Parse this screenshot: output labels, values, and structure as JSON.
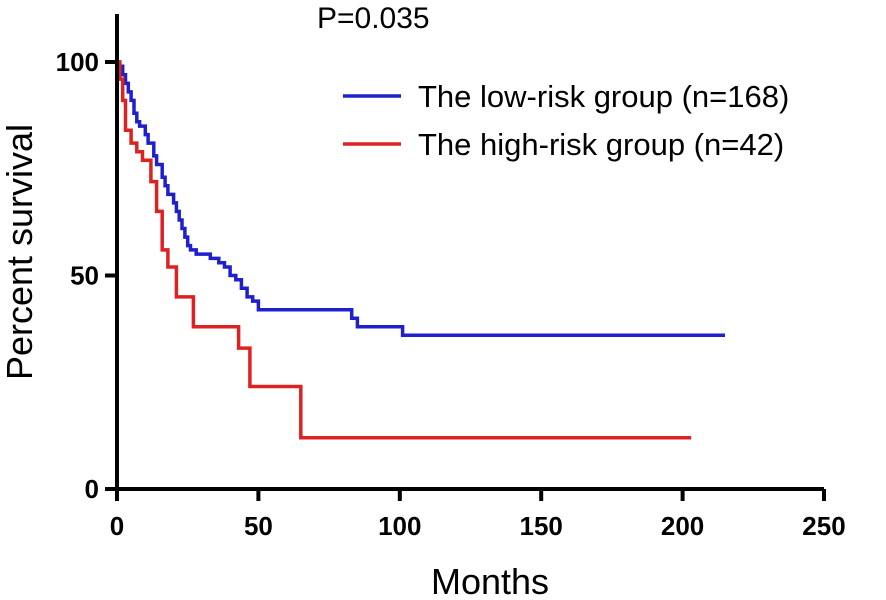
{
  "chart_data": {
    "type": "line",
    "title": "",
    "annotation": "P=0.035",
    "xlabel": "Months",
    "ylabel": "Percent survival",
    "xlim": [
      0,
      250
    ],
    "ylim": [
      0,
      100
    ],
    "xticks": [
      0,
      50,
      100,
      150,
      200,
      250
    ],
    "yticks": [
      0,
      50,
      100
    ],
    "xtick_labels": [
      "0",
      "50",
      "100",
      "150",
      "200",
      "250"
    ],
    "ytick_labels": [
      "0",
      "50",
      "100"
    ],
    "legend_position": "top-right",
    "series": [
      {
        "name": "The low-risk group (n=168)",
        "color": "#1f1fcc",
        "step": true,
        "x": [
          0,
          1,
          2,
          3,
          4,
          5,
          6,
          7,
          8,
          10,
          11,
          13,
          14,
          16,
          17,
          18,
          20,
          21,
          22,
          23,
          24,
          25,
          26,
          28,
          30,
          33,
          36,
          38,
          40,
          42,
          44,
          46,
          48,
          50,
          60,
          70,
          82,
          83,
          85,
          100,
          101,
          215
        ],
        "y": [
          100,
          99,
          97,
          95,
          93,
          91,
          88,
          86,
          85,
          83,
          81,
          78,
          76,
          73,
          71,
          69,
          67,
          65,
          63,
          61,
          59,
          57,
          56,
          55,
          55,
          54,
          53,
          52,
          50,
          49,
          47,
          45,
          44,
          42,
          42,
          42,
          42,
          40,
          38,
          38,
          36,
          36
        ]
      },
      {
        "name": "The high-risk group (n=42)",
        "color": "#dd2222",
        "step": true,
        "x": [
          0,
          1,
          2,
          3,
          5,
          7,
          9,
          12,
          14,
          16,
          18,
          21,
          27,
          43,
          47,
          65,
          203
        ],
        "y": [
          100,
          96,
          91,
          84,
          81,
          79,
          77,
          72,
          65,
          56,
          52,
          45,
          38,
          33,
          24,
          12,
          12
        ]
      }
    ]
  }
}
